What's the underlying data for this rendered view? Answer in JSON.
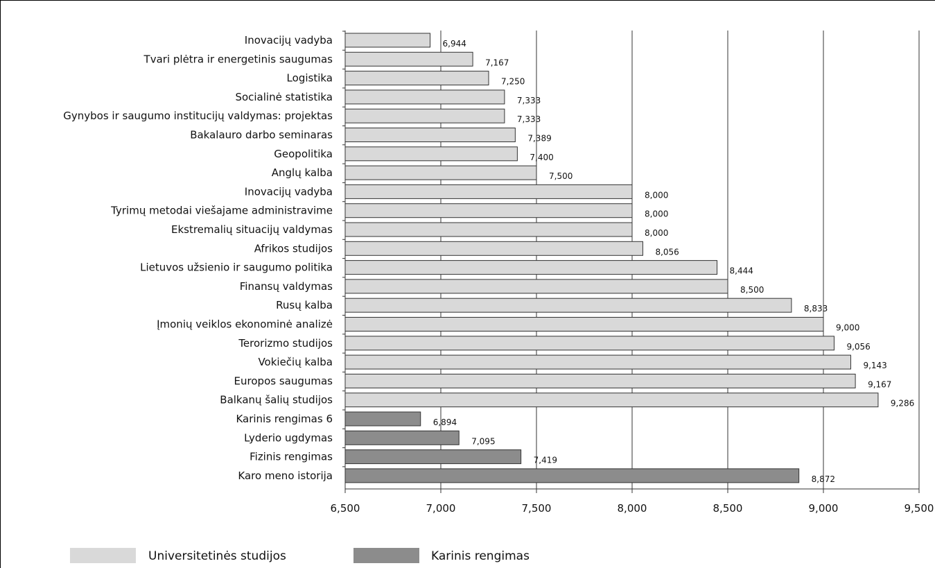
{
  "chart_data": {
    "type": "bar",
    "orientation": "horizontal",
    "xlim": [
      6500,
      9500
    ],
    "xticks": [
      "6,500",
      "7,000",
      "7,500",
      "8,000",
      "8,500",
      "9,000",
      "9,500"
    ],
    "xtick_values": [
      6500,
      7000,
      7500,
      8000,
      8500,
      9000,
      9500
    ],
    "grid": "vertical",
    "legend_position": "bottom-left",
    "colors": {
      "Universitetinės studijos": "#d9d9d9",
      "Karinis rengimas": "#8c8c8c"
    },
    "bars": [
      {
        "label": "Inovacijų vadyba",
        "value": 6944,
        "value_label": "6,944",
        "series": "Universitetinės studijos"
      },
      {
        "label": "Tvari plėtra ir energetinis saugumas",
        "value": 7167,
        "value_label": "7,167",
        "series": "Universitetinės studijos"
      },
      {
        "label": "Logistika",
        "value": 7250,
        "value_label": "7,250",
        "series": "Universitetinės studijos"
      },
      {
        "label": "Socialinė statistika",
        "value": 7333,
        "value_label": "7,333",
        "series": "Universitetinės studijos"
      },
      {
        "label": "Gynybos ir saugumo institucijų valdymas: projektas",
        "value": 7333,
        "value_label": "7,333",
        "series": "Universitetinės studijos"
      },
      {
        "label": "Bakalauro darbo seminaras",
        "value": 7389,
        "value_label": "7,389",
        "series": "Universitetinės studijos"
      },
      {
        "label": "Geopolitika",
        "value": 7400,
        "value_label": "7,400",
        "series": "Universitetinės studijos"
      },
      {
        "label": "Anglų kalba",
        "value": 7500,
        "value_label": "7,500",
        "series": "Universitetinės studijos"
      },
      {
        "label": "Inovacijų vadyba",
        "value": 8000,
        "value_label": "8,000",
        "series": "Universitetinės studijos"
      },
      {
        "label": "Tyrimų metodai viešajame administravime",
        "value": 8000,
        "value_label": "8,000",
        "series": "Universitetinės studijos"
      },
      {
        "label": "Ekstremalių situacijų valdymas",
        "value": 8000,
        "value_label": "8,000",
        "series": "Universitetinės studijos"
      },
      {
        "label": "Afrikos studijos",
        "value": 8056,
        "value_label": "8,056",
        "series": "Universitetinės studijos"
      },
      {
        "label": "Lietuvos užsienio ir saugumo politika",
        "value": 8444,
        "value_label": "8,444",
        "series": "Universitetinės studijos"
      },
      {
        "label": "Finansų valdymas",
        "value": 8500,
        "value_label": "8,500",
        "series": "Universitetinės studijos"
      },
      {
        "label": "Rusų kalba",
        "value": 8833,
        "value_label": "8,833",
        "series": "Universitetinės studijos"
      },
      {
        "label": "Įmonių veiklos ekonominė analizė",
        "value": 9000,
        "value_label": "9,000",
        "series": "Universitetinės studijos"
      },
      {
        "label": "Terorizmo studijos",
        "value": 9056,
        "value_label": "9,056",
        "series": "Universitetinės studijos"
      },
      {
        "label": "Vokiečių kalba",
        "value": 9143,
        "value_label": "9,143",
        "series": "Universitetinės studijos"
      },
      {
        "label": "Europos saugumas",
        "value": 9167,
        "value_label": "9,167",
        "series": "Universitetinės studijos"
      },
      {
        "label": "Balkanų šalių studijos",
        "value": 9286,
        "value_label": "9,286",
        "series": "Universitetinės studijos"
      },
      {
        "label": "Karinis rengimas 6",
        "value": 6894,
        "value_label": "6,894",
        "series": "Karinis rengimas"
      },
      {
        "label": "Lyderio ugdymas",
        "value": 7095,
        "value_label": "7,095",
        "series": "Karinis rengimas"
      },
      {
        "label": "Fizinis rengimas",
        "value": 7419,
        "value_label": "7,419",
        "series": "Karinis rengimas"
      },
      {
        "label": "Karo meno istorija",
        "value": 8872,
        "value_label": "8,872",
        "series": "Karinis rengimas"
      }
    ],
    "legend": [
      {
        "name": "Universitetinės studijos",
        "color": "#d9d9d9"
      },
      {
        "name": "Karinis rengimas",
        "color": "#8c8c8c"
      }
    ]
  }
}
